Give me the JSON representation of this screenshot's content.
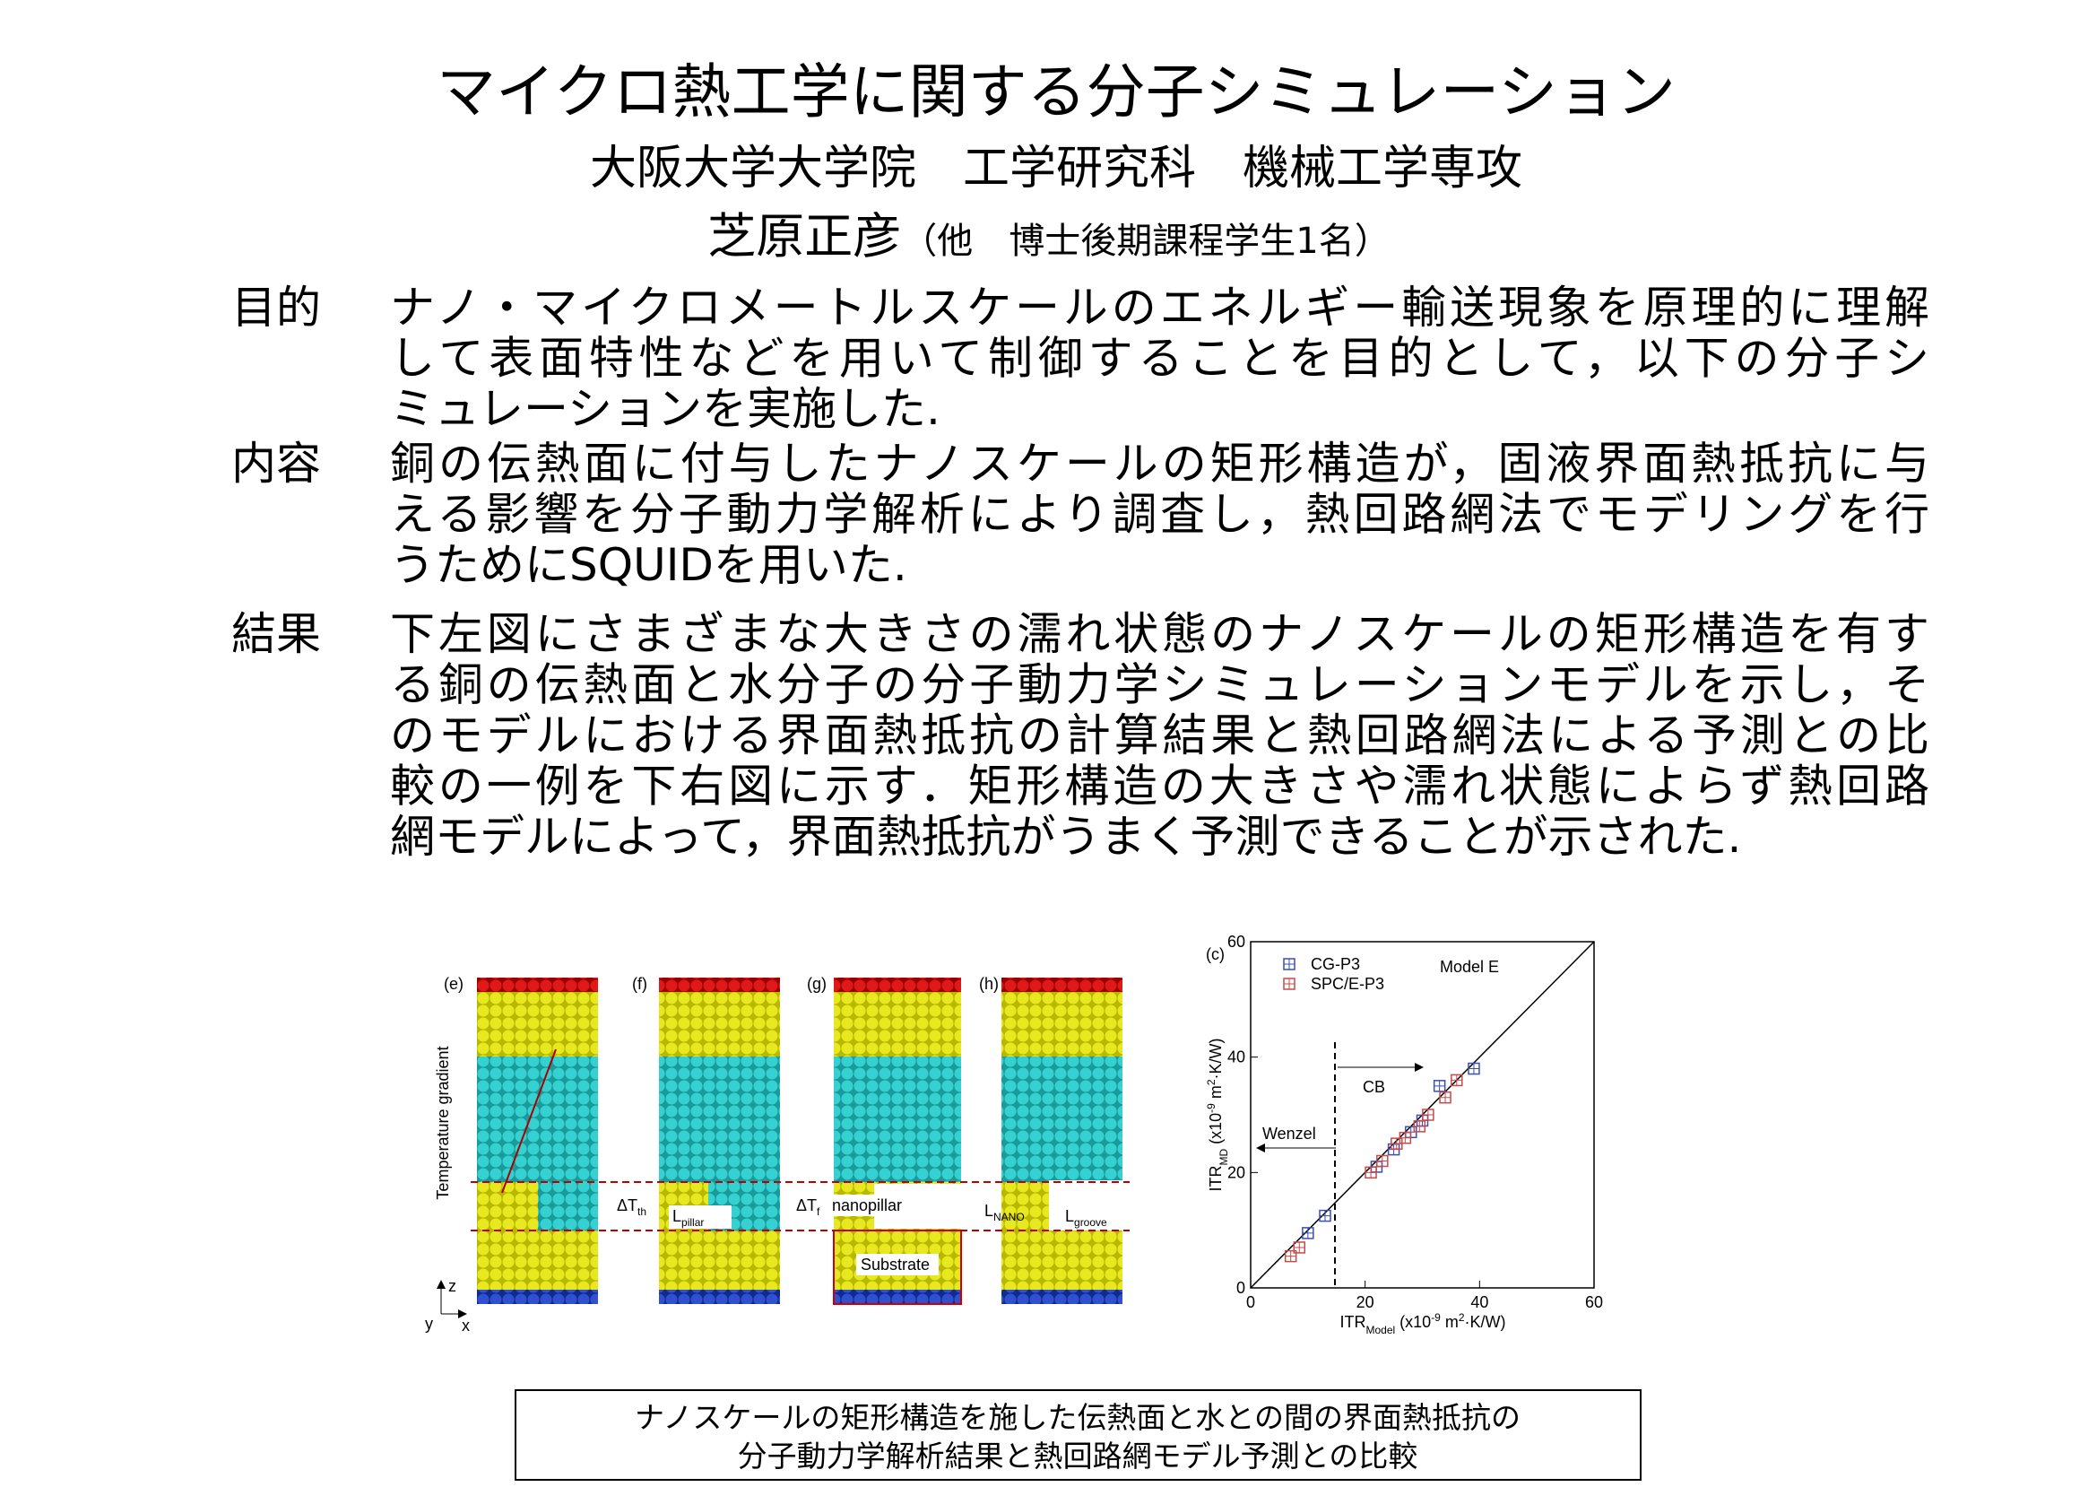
{
  "header": {
    "title": "マイクロ熱工学に関する分子シミュレーション",
    "affiliation": "大阪大学大学院　工学研究科　機械工学専攻",
    "author": "芝原正彦",
    "author_note": "（他　博士後期課程学生1名）"
  },
  "sections": [
    {
      "label": "目的",
      "lines": [
        "ナノ・マイクロメートルスケールのエネルギー輸送現象を原理的に理解",
        "して表面特性などを用いて制御することを目的として，以下の分子シ",
        "ミュレーションを実施した."
      ]
    },
    {
      "label": "内容",
      "lines": [
        "銅の伝熱面に付与したナノスケールの矩形構造が，固液界面熱抵抗に与",
        "える影響を分子動力学解析により調査し，熱回路網法でモデリングを行",
        "うためにSQUIDを用いた."
      ]
    },
    {
      "label": "結果",
      "lines": [
        " 下左図にさまざまな大きさの濡れ状態のナノスケールの矩形構造を有す",
        "る銅の伝熱面と水分子の分子動力学シミュレーションモデルを示し，そ",
        "のモデルにおける界面熱抵抗の計算結果と熱回路網法による予測との比",
        "較の一例を下右図に示す．矩形構造の大きさや濡れ状態によらず熱回路",
        "網モデルによって，界面熱抵抗がうまく予測できることが示された."
      ]
    }
  ],
  "figure_left": {
    "panels": [
      "(e)",
      "(f)",
      "(g)",
      "(h)"
    ],
    "temperature_gradient": "Temperature gradient",
    "dt_th": {
      "main": "ΔT",
      "sub": "th"
    },
    "l_pillar": {
      "main": "L",
      "sub": "pillar"
    },
    "dt_f": {
      "main": "ΔT",
      "sub": "f"
    },
    "nanopillar": "nanopillar",
    "substrate": "Substrate",
    "l_nano": {
      "main": "L",
      "sub": "NANO"
    },
    "l_groove": {
      "main": "L",
      "sub": "groove"
    },
    "axis_z": "z",
    "axis_y": "y",
    "axis_x": "x"
  },
  "chart_data": {
    "type": "scatter",
    "panel_label": "(c)",
    "annotations": {
      "model": "Model E",
      "cb": "CB",
      "wenzel": "Wenzel"
    },
    "xlabel_parts": [
      [
        "ITR",
        ""
      ],
      [
        "Model",
        "sub"
      ],
      [
        " (x10",
        ""
      ],
      [
        "-9",
        "sup"
      ],
      [
        " m",
        ""
      ],
      [
        "2",
        "sup"
      ],
      [
        "·K/W)",
        ""
      ]
    ],
    "ylabel_parts": [
      [
        "ITR",
        ""
      ],
      [
        "MD",
        "sub"
      ],
      [
        " (x10",
        ""
      ],
      [
        "-9",
        "sup"
      ],
      [
        " m",
        ""
      ],
      [
        "2",
        "sup"
      ],
      [
        "·K/W)",
        ""
      ]
    ],
    "xlim": [
      0,
      60
    ],
    "ylim": [
      0,
      60
    ],
    "xticks": [
      0,
      20,
      40,
      60
    ],
    "yticks": [
      0,
      20,
      40,
      60
    ],
    "series": [
      {
        "name": "CG-P3",
        "color": "#3a4fb0",
        "x": [
          10,
          13,
          22,
          25,
          28,
          30,
          33,
          39
        ],
        "values": [
          9.5,
          12.5,
          21,
          24,
          27,
          29,
          35,
          38
        ]
      },
      {
        "name": "SPC/E-P3",
        "color": "#c84a4a",
        "x": [
          7,
          8.5,
          21,
          23,
          25.5,
          27,
          29.5,
          31,
          34,
          36
        ],
        "values": [
          5.5,
          7,
          20,
          22,
          25,
          26,
          28,
          30,
          33,
          36
        ]
      }
    ]
  },
  "caption": [
    "ナノスケールの矩形構造を施した伝熱面と水との間の界面熱抵抗の",
    "分子動力学解析結果と熱回路網モデル予測との比較"
  ]
}
